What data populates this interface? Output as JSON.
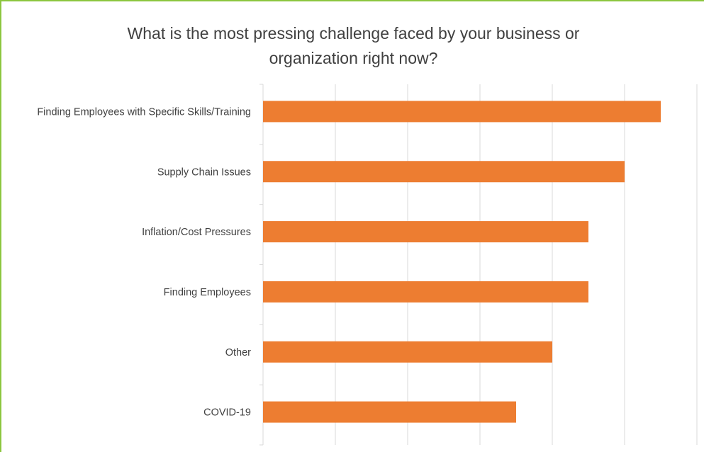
{
  "chart_data": {
    "type": "bar",
    "orientation": "horizontal",
    "title": "What is the most pressing challenge faced by your business or organization right now?",
    "title_lines": [
      "What is the most pressing challenge faced by your business or",
      "organization right now?"
    ],
    "categories": [
      "Finding Employees with Specific Skills/Training",
      "Supply Chain Issues",
      "Inflation/Cost Pressures",
      "Finding Employees",
      "Other",
      "COVID-19"
    ],
    "values": [
      11,
      10,
      9,
      9,
      8,
      7
    ],
    "xlim": [
      0,
      12
    ],
    "grid": true,
    "gridline_step": 2,
    "bar_color": "#ed7d31",
    "grid_color": "#d9d9d9"
  }
}
